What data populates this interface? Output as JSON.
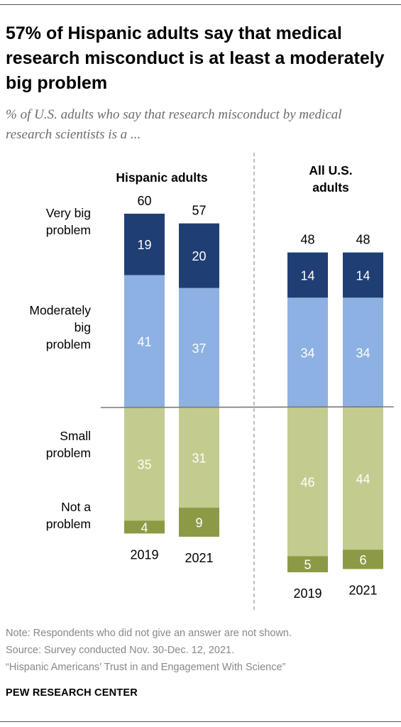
{
  "header": {
    "title": "57% of Hispanic adults say that medical research misconduct is at least a moderately big problem",
    "subtitle": "% of U.S. adults who say that research misconduct by medical research scientists is a ..."
  },
  "chart_data": {
    "type": "bar",
    "stacked": "diverging",
    "categories": [
      "Very big problem",
      "Moderately big problem",
      "Small problem",
      "Not a problem"
    ],
    "groups": [
      {
        "name": "Hispanic adults",
        "bars": [
          {
            "year": "2019",
            "net": 60,
            "very_big": 19,
            "moderately_big": 41,
            "small": 35,
            "not_a_problem": 4
          },
          {
            "year": "2021",
            "net": 57,
            "very_big": 20,
            "moderately_big": 37,
            "small": 31,
            "not_a_problem": 9
          }
        ]
      },
      {
        "name": "All U.S. adults",
        "bars": [
          {
            "year": "2019",
            "net": 48,
            "very_big": 14,
            "moderately_big": 34,
            "small": 46,
            "not_a_problem": 5
          },
          {
            "year": "2021",
            "net": 48,
            "very_big": 14,
            "moderately_big": 34,
            "small": 44,
            "not_a_problem": 6
          }
        ]
      }
    ],
    "colors": {
      "very_big": "#1f3e74",
      "moderately_big": "#8db1e2",
      "small": "#c4cb8f",
      "not_a_problem": "#8d9a45"
    }
  },
  "footer": {
    "note": "Note: Respondents who did not give an answer are not shown.",
    "source": "Source: Survey conducted Nov. 30-Dec. 12, 2021.",
    "report": "“Hispanic Americans’ Trust in and Engagement With Science”",
    "brand": "PEW RESEARCH CENTER"
  }
}
